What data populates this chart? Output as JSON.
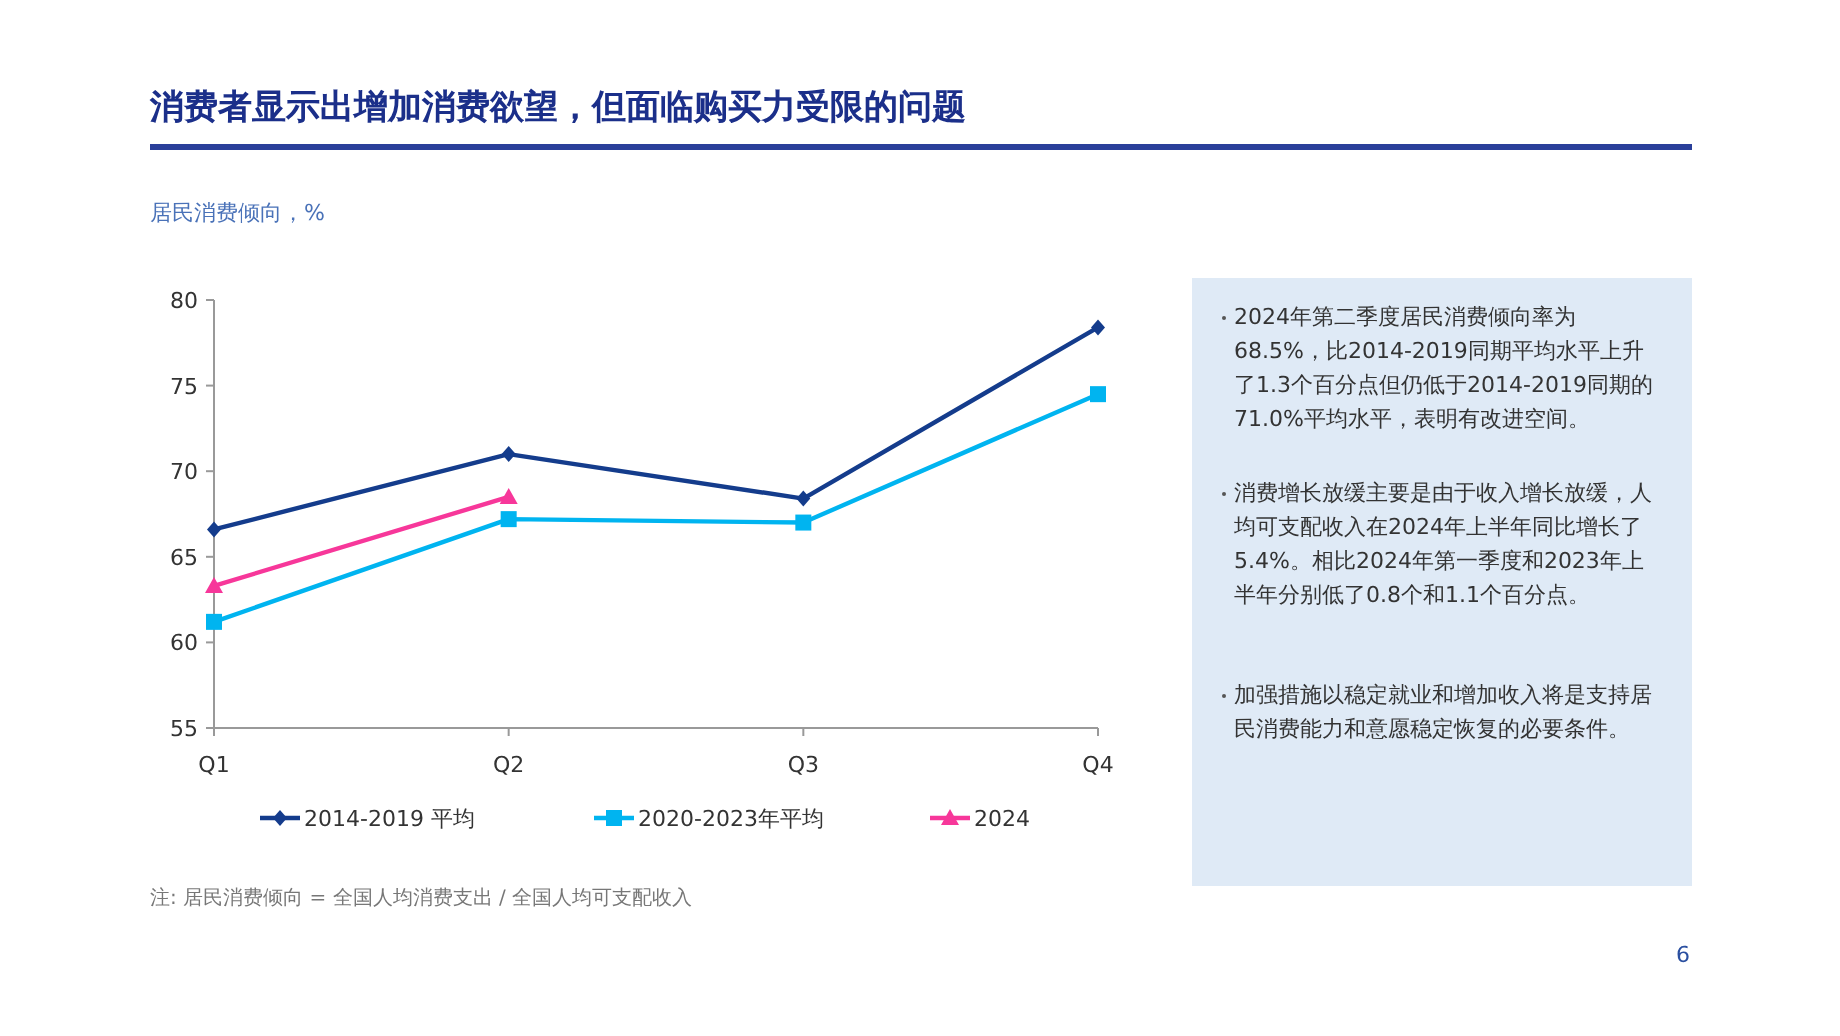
{
  "chart_data": {
    "type": "line",
    "title": "消费者显示出增加消费欲望，但面临购买力受限的问题",
    "ylabel": "居民消费倾向，%",
    "categories": [
      "Q1",
      "Q2",
      "Q3",
      "Q4"
    ],
    "series": [
      {
        "name": "2014-2019 平均",
        "color": "#143c8c",
        "marker": "diamond",
        "values": [
          66.6,
          71.0,
          68.4,
          78.4
        ]
      },
      {
        "name": "2020-2023年平均",
        "color": "#00b4f0",
        "marker": "square",
        "values": [
          61.2,
          67.2,
          67.0,
          74.5
        ]
      },
      {
        "name": "2024",
        "color": "#f7379a",
        "marker": "triangle",
        "values": [
          63.3,
          68.5,
          null,
          null
        ]
      }
    ],
    "ylim": [
      55,
      80
    ],
    "yticks": [
      55,
      60,
      65,
      70,
      75,
      80
    ],
    "grid": false,
    "legend": "bottom",
    "line_style": "solid",
    "annotations": [
      "2024年第二季度居民消费倾向率为68.5%，比2014-2019同期平均水平上升了1.3个百分点但仍低于2014-2019同期的71.0%平均水平，表明有改进空间。",
      "消费增长放缓主要是由于收入增长放缓，人均可支配收入在2024年上半年同比增长了5.4%。相比2024年第一季度和2023年上半年分别低了0.8个和1.1个百分点。",
      "加强措施以稳定就业和增加收入将是支持居民消费能力和意愿稳定恢复的必要条件。",
      "注: 居民消费倾向 = 全国人均消费支出 / 全国人均可支配收入",
      "6"
    ]
  }
}
